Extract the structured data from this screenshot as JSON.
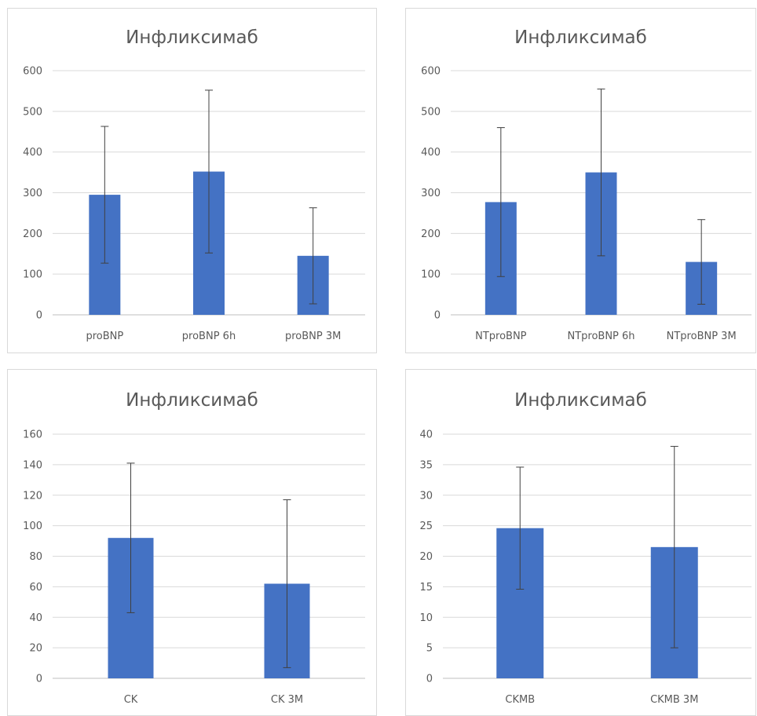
{
  "chart_data": [
    {
      "type": "bar",
      "title": "Инфликсимаб",
      "categories": [
        "proBNP",
        "proBNP 6h",
        "proBNP 3M"
      ],
      "values": [
        295,
        352,
        145
      ],
      "error_plus": [
        168,
        200,
        118
      ],
      "error_minus": [
        168,
        200,
        118
      ],
      "ylim": [
        0,
        600
      ],
      "yticks": [
        "0",
        "100",
        "200",
        "300",
        "400",
        "500",
        "600"
      ],
      "grid": true,
      "color": "#4472c4"
    },
    {
      "type": "bar",
      "title": "Инфликсимаб",
      "categories": [
        "NTproBNP",
        "NTproBNP 6h",
        "NTproBNP 3M"
      ],
      "values": [
        277,
        350,
        130
      ],
      "error_plus": [
        183,
        205,
        104
      ],
      "error_minus": [
        183,
        205,
        104
      ],
      "ylim": [
        0,
        600
      ],
      "yticks": [
        "0",
        "100",
        "200",
        "300",
        "400",
        "500",
        "600"
      ],
      "grid": true,
      "color": "#4472c4"
    },
    {
      "type": "bar",
      "title": "Инфликсимаб",
      "categories": [
        "CK",
        "CK 3M"
      ],
      "values": [
        92,
        62
      ],
      "error_plus": [
        49,
        55
      ],
      "error_minus": [
        49,
        55
      ],
      "ylim": [
        0,
        160
      ],
      "yticks": [
        "0",
        "20",
        "40",
        "60",
        "80",
        "100",
        "120",
        "140",
        "160"
      ],
      "grid": true,
      "color": "#4472c4"
    },
    {
      "type": "bar",
      "title": "Инфликсимаб",
      "categories": [
        "CKMB",
        "CKMB 3M"
      ],
      "values": [
        24.6,
        21.5
      ],
      "error_plus": [
        10,
        16.5
      ],
      "error_minus": [
        10,
        16.5
      ],
      "ylim": [
        0,
        40
      ],
      "yticks": [
        "0",
        "5",
        "10",
        "15",
        "20",
        "25",
        "30",
        "35",
        "40"
      ],
      "grid": true,
      "color": "#4472c4"
    }
  ]
}
